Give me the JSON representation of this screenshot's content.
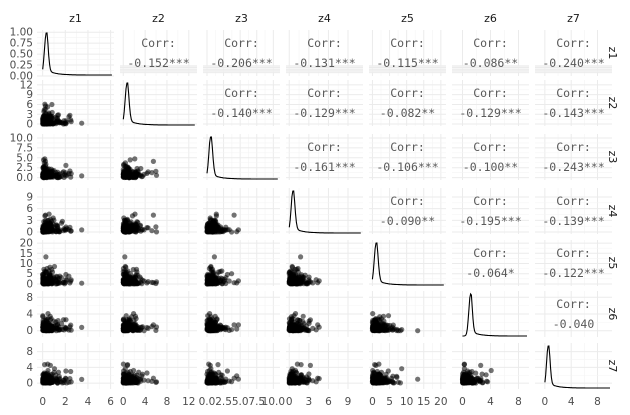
{
  "chart_data": {
    "type": "scatter",
    "variables": [
      "z1",
      "z2",
      "z3",
      "z4",
      "z5",
      "z6",
      "z7"
    ],
    "corr_label": "Corr:",
    "correlations": [
      {
        "row": "z1",
        "col": "z2",
        "text": "-0.152***"
      },
      {
        "row": "z1",
        "col": "z3",
        "text": "-0.206***"
      },
      {
        "row": "z1",
        "col": "z4",
        "text": "-0.131***"
      },
      {
        "row": "z1",
        "col": "z5",
        "text": "-0.115***"
      },
      {
        "row": "z1",
        "col": "z6",
        "text": "-0.086**"
      },
      {
        "row": "z1",
        "col": "z7",
        "text": "-0.240***"
      },
      {
        "row": "z2",
        "col": "z3",
        "text": "-0.140***"
      },
      {
        "row": "z2",
        "col": "z4",
        "text": "-0.129***"
      },
      {
        "row": "z2",
        "col": "z5",
        "text": "-0.082**"
      },
      {
        "row": "z2",
        "col": "z6",
        "text": "-0.129***"
      },
      {
        "row": "z2",
        "col": "z7",
        "text": "-0.143***"
      },
      {
        "row": "z3",
        "col": "z4",
        "text": "-0.161***"
      },
      {
        "row": "z3",
        "col": "z5",
        "text": "-0.106***"
      },
      {
        "row": "z3",
        "col": "z6",
        "text": "-0.100**"
      },
      {
        "row": "z3",
        "col": "z7",
        "text": "-0.243***"
      },
      {
        "row": "z4",
        "col": "z5",
        "text": "-0.090**"
      },
      {
        "row": "z4",
        "col": "z6",
        "text": "-0.195***"
      },
      {
        "row": "z4",
        "col": "z7",
        "text": "-0.139***"
      },
      {
        "row": "z5",
        "col": "z6",
        "text": "-0.064*"
      },
      {
        "row": "z5",
        "col": "z7",
        "text": "-0.122***"
      },
      {
        "row": "z6",
        "col": "z7",
        "text": "-0.040"
      }
    ],
    "x_ticks": [
      [
        "0",
        "2",
        "4",
        "6"
      ],
      [
        "0",
        "4",
        "8",
        "12"
      ],
      [
        "0.0",
        "2.5",
        "5.0",
        "7.5",
        "10.0"
      ],
      [
        "0",
        "3",
        "6",
        "9"
      ],
      [
        "0",
        "5",
        "10",
        "15",
        "20"
      ],
      [
        "0",
        "4",
        "8"
      ],
      [
        "0",
        "4",
        "8"
      ]
    ],
    "y_ticks": [
      [
        "0.00",
        "0.25",
        "0.50",
        "0.75",
        "1.00"
      ],
      [
        "0",
        "3",
        "6",
        "9",
        "12"
      ],
      [
        "0.0",
        "2.5",
        "5.0",
        "7.5",
        "10.0"
      ],
      [
        "0",
        "3",
        "6",
        "9"
      ],
      [
        "0",
        "5",
        "10",
        "15",
        "20"
      ],
      [
        "0",
        "4",
        "8"
      ],
      [
        "0",
        "4",
        "8"
      ]
    ],
    "ranges": [
      [
        -0.5,
        6.3
      ],
      [
        -0.6,
        13.5
      ],
      [
        -0.6,
        11.0
      ],
      [
        -0.5,
        11.3
      ],
      [
        -1.0,
        21.5
      ],
      [
        -1.5,
        9.5
      ],
      [
        -1.5,
        10.2
      ]
    ],
    "density_ylim": [
      0,
      1.05
    ],
    "grid": true,
    "colors": {
      "panel": "#ffffff",
      "grid_major": "#ebebeb",
      "grid_minor": "#f4f4f4",
      "point": "#000000",
      "line": "#000000",
      "text": "#1a1a1a",
      "tick": "#4d4d4d",
      "corr": "#595959"
    }
  }
}
